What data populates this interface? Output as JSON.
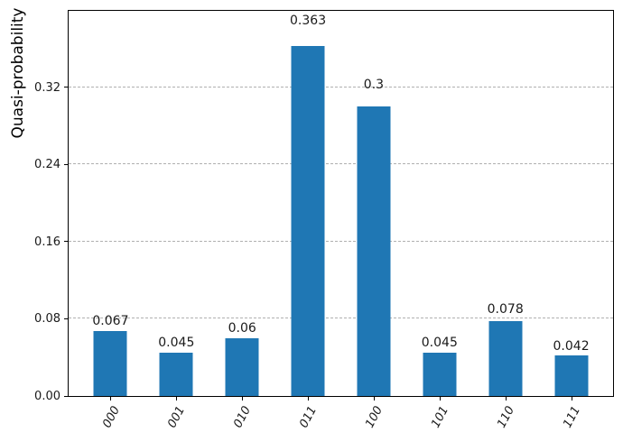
{
  "chart_data": {
    "type": "bar",
    "title": "",
    "xlabel": "",
    "ylabel": "Quasi-probability",
    "categories": [
      "000",
      "001",
      "010",
      "011",
      "100",
      "101",
      "110",
      "111"
    ],
    "values": [
      0.067,
      0.045,
      0.06,
      0.363,
      0.3,
      0.045,
      0.078,
      0.042
    ],
    "bar_value_labels": [
      "0.067",
      "0.045",
      "0.06",
      "0.363",
      "0.3",
      "0.045",
      "0.078",
      "0.042"
    ],
    "yticks": [
      0.0,
      0.08,
      0.16,
      0.24,
      0.32
    ],
    "ytick_labels": [
      "0.00",
      "0.08",
      "0.16",
      "0.24",
      "0.32"
    ],
    "ylim": [
      0,
      0.3993
    ],
    "grid": "horizontal-dashed",
    "legend": "none",
    "bar_color": "#1f77b4",
    "grid_color": "#b0b0b0",
    "spine_color": "#000000",
    "value_label_offset_factor": 1.05
  }
}
